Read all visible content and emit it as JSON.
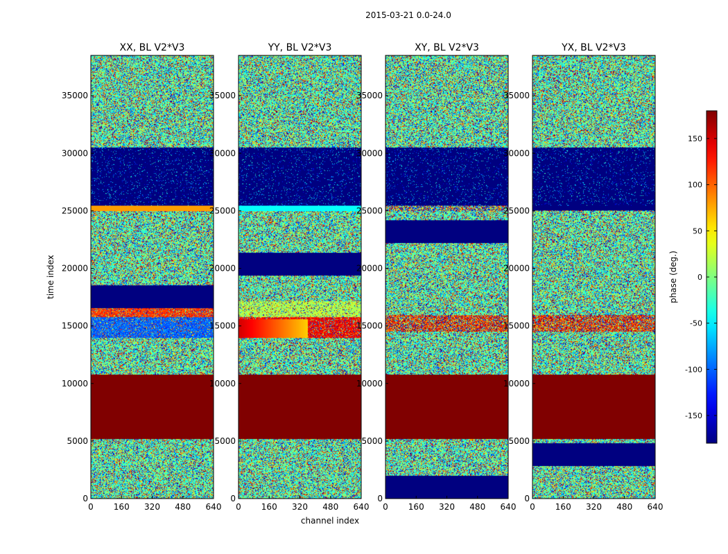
{
  "figure": {
    "suptitle": "2015-03-21 0.0-24.0"
  },
  "chart_data": {
    "type": "heatmap",
    "panels": [
      {
        "title": "XX, BL V2*V3",
        "signature": "xx"
      },
      {
        "title": "YY, BL V2*V3",
        "signature": "yy"
      },
      {
        "title": "XY, BL V2*V3",
        "signature": "xy"
      },
      {
        "title": "YX, BL V2*V3",
        "signature": "yx"
      }
    ],
    "xlabel": "channel index",
    "ylabel": "time index",
    "xlim": [
      0,
      640
    ],
    "ylim": [
      0,
      38500
    ],
    "xticks": [
      0,
      160,
      320,
      480,
      640
    ],
    "yticks": [
      0,
      5000,
      10000,
      15000,
      20000,
      25000,
      30000,
      35000
    ],
    "colorbar": {
      "label": "phase (deg.)",
      "range": [
        -180,
        180
      ],
      "ticks": [
        -150,
        -100,
        -50,
        0,
        50,
        100,
        150
      ],
      "colormap": "jet"
    },
    "regions": {
      "saturated_phase_deg": 180,
      "saturated_time_range": [
        5200,
        10800
      ],
      "low_phase_deg": -180,
      "low_time_range": [
        25500,
        30500
      ]
    }
  }
}
